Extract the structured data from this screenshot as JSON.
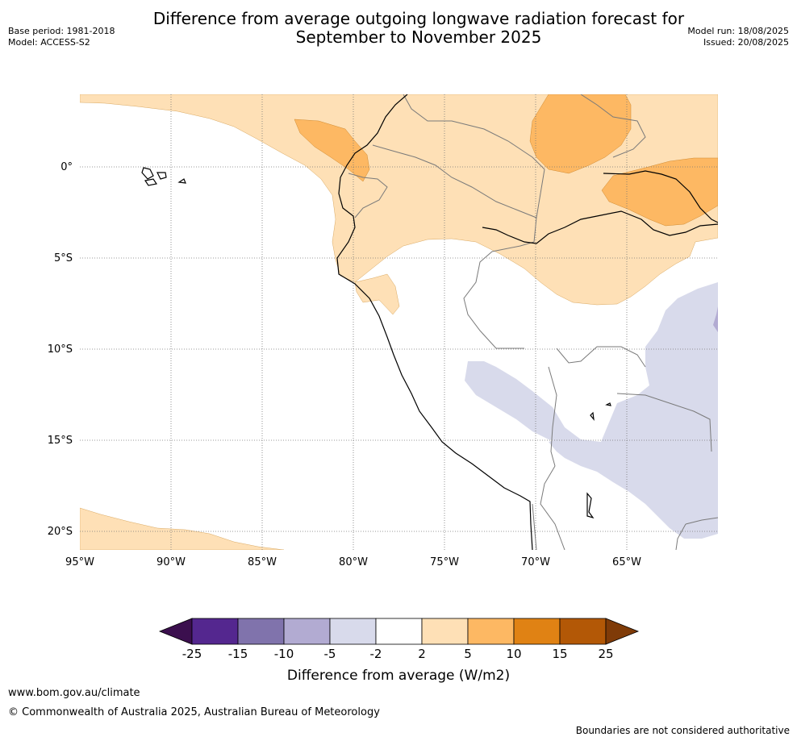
{
  "header": {
    "title_line1": "Difference from average outgoing longwave radiation forecast for",
    "title_line2": "September to November 2025",
    "base_period": "Base period: 1981-2018",
    "model": "Model: ACCESS-S2",
    "model_run": "Model run: 18/08/2025",
    "issued": "Issued: 20/08/2025"
  },
  "map": {
    "lon_labels": [
      "95°W",
      "90°W",
      "85°W",
      "80°W",
      "75°W",
      "70°W",
      "65°W"
    ],
    "lat_labels": [
      "0°",
      "5°S",
      "10°S",
      "15°S",
      "20°S"
    ],
    "gridlines": true
  },
  "colorbar": {
    "title": "Difference from average (W/m2)",
    "ticks": [
      "-25",
      "-15",
      "-10",
      "-5",
      "-2",
      "2",
      "5",
      "10",
      "15",
      "25"
    ],
    "colors": {
      "under": "#3b0f4e",
      "bins": [
        "#54278f",
        "#8073ac",
        "#b2abd2",
        "#d8daeb",
        "#ffffff",
        "#fee0b6",
        "#fdb863",
        "#e08214",
        "#b35806"
      ],
      "over": "#7f3b08"
    }
  },
  "footer": {
    "url": "www.bom.gov.au/climate",
    "copyright": "© Commonwealth of Australia 2025, Australian Bureau of Meteorology",
    "note": "Boundaries are not considered authoritative"
  }
}
